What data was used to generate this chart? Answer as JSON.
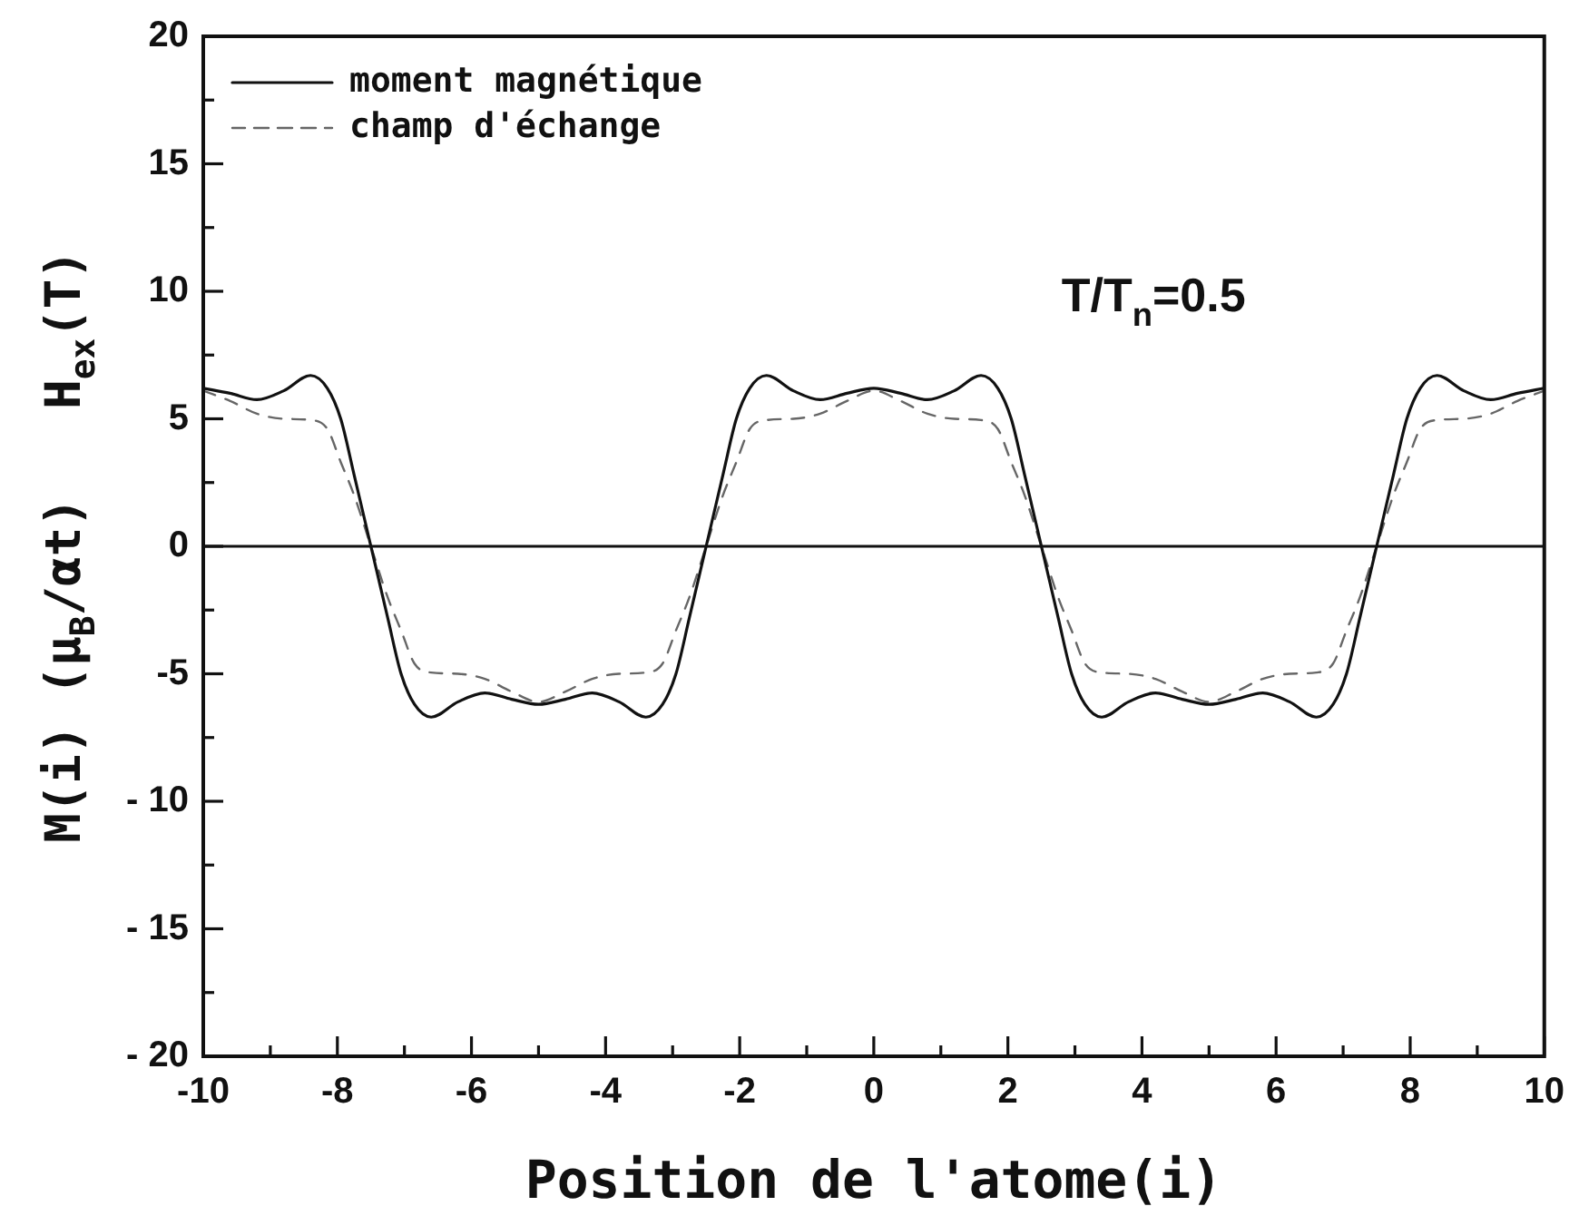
{
  "chart_data": {
    "type": "line",
    "xlabel": "Position de l'atome(i)",
    "ylabel": "M(i) (μ$_{B}$/αt)   H$_{ex}$(T)",
    "annotations": [
      "T/T$_{n}$=0.5"
    ],
    "xlim": [
      -10,
      10
    ],
    "xticks": [
      -10,
      {
        "value": -9,
        "label": null
      },
      -8,
      {
        "value": -7,
        "label": null
      },
      -6,
      {
        "value": -5,
        "label": null
      },
      -4,
      {
        "value": -3,
        "label": null
      },
      -2,
      {
        "value": -1,
        "label": null
      },
      0,
      {
        "value": 1,
        "label": null
      },
      2,
      {
        "value": 3,
        "label": null
      },
      4,
      {
        "value": 5,
        "label": null
      },
      6,
      {
        "value": 7,
        "label": null
      },
      8,
      {
        "value": 9,
        "label": null
      },
      10
    ],
    "ylim": [
      -20,
      20
    ],
    "yticks": [
      {
        "value": -20,
        "label": "- 20"
      },
      {
        "value": -17.5,
        "label": null
      },
      {
        "value": -15,
        "label": "- 15"
      },
      {
        "value": -12.5,
        "label": null
      },
      {
        "value": -10,
        "label": "- 10"
      },
      {
        "value": -7.5,
        "label": null
      },
      -5,
      {
        "value": -2.5,
        "label": null
      },
      0,
      {
        "value": 2.5,
        "label": null
      },
      5,
      {
        "value": 7.5,
        "label": null
      },
      10,
      {
        "value": 12.5,
        "label": null
      },
      15,
      {
        "value": 17.5,
        "label": null
      },
      20
    ],
    "x": [
      -10,
      -9.6,
      -9.2,
      -8.8,
      -8.4,
      -8.15,
      -7.95,
      -7.75,
      -7.5,
      -7.25,
      -7.05,
      -6.85,
      -6.6,
      -6.2,
      -5.8,
      -5.4,
      -5,
      -4.6,
      -4.2,
      -3.8,
      -3.4,
      -3.15,
      -2.95,
      -2.75,
      -2.5,
      -2.25,
      -2.05,
      -1.85,
      -1.6,
      -1.2,
      -0.8,
      -0.4,
      0,
      0.4,
      0.8,
      1.2,
      1.6,
      1.85,
      2.05,
      2.25,
      2.5,
      2.75,
      2.95,
      3.15,
      3.4,
      3.8,
      4.2,
      4.6,
      5,
      5.4,
      5.8,
      6.2,
      6.6,
      6.85,
      7.05,
      7.25,
      7.5,
      7.75,
      7.95,
      8.15,
      8.4,
      8.8,
      9.2,
      9.6,
      10
    ],
    "series": [
      {
        "name": "moment magnétique",
        "color": "#111111",
        "line_style": "solid",
        "values": [
          6.2,
          6.0,
          5.75,
          6.1,
          6.7,
          6.2,
          5.0,
          2.8,
          0,
          -2.8,
          -5.0,
          -6.2,
          -6.7,
          -6.1,
          -5.75,
          -6.0,
          -6.2,
          -6.0,
          -5.75,
          -6.1,
          -6.7,
          -6.2,
          -5.0,
          -2.8,
          0,
          2.8,
          5.0,
          6.2,
          6.7,
          6.1,
          5.75,
          6.0,
          6.2,
          6.0,
          5.75,
          6.1,
          6.7,
          6.2,
          5.0,
          2.8,
          0,
          -2.8,
          -5.0,
          -6.2,
          -6.7,
          -6.1,
          -5.75,
          -6.0,
          -6.2,
          -6.0,
          -5.75,
          -6.1,
          -6.7,
          -6.2,
          -5.0,
          -2.8,
          0,
          2.8,
          5.0,
          6.2,
          6.7,
          6.1,
          5.75,
          6.0,
          6.2
        ]
      },
      {
        "name": "champ d'échange",
        "color": "#666666",
        "line_style": "dashed",
        "values": [
          6.1,
          5.7,
          5.2,
          5.0,
          4.95,
          4.6,
          3.3,
          2.0,
          0,
          -2.0,
          -3.3,
          -4.6,
          -4.95,
          -5.0,
          -5.2,
          -5.7,
          -6.1,
          -5.7,
          -5.2,
          -5.0,
          -4.95,
          -4.6,
          -3.3,
          -2.0,
          0,
          2.0,
          3.3,
          4.6,
          4.95,
          5.0,
          5.2,
          5.7,
          6.1,
          5.7,
          5.2,
          5.0,
          4.95,
          4.6,
          3.3,
          2.0,
          0,
          -2.0,
          -3.3,
          -4.6,
          -4.95,
          -5.0,
          -5.2,
          -5.7,
          -6.1,
          -5.7,
          -5.2,
          -5.0,
          -4.95,
          -4.6,
          -3.3,
          -2.0,
          0,
          2.0,
          3.3,
          4.6,
          4.95,
          5.0,
          5.2,
          5.7,
          6.1
        ]
      }
    ],
    "ref_lines": [
      {
        "axis": "y",
        "value": 0
      }
    ],
    "legend": "top left",
    "marker": "none"
  }
}
